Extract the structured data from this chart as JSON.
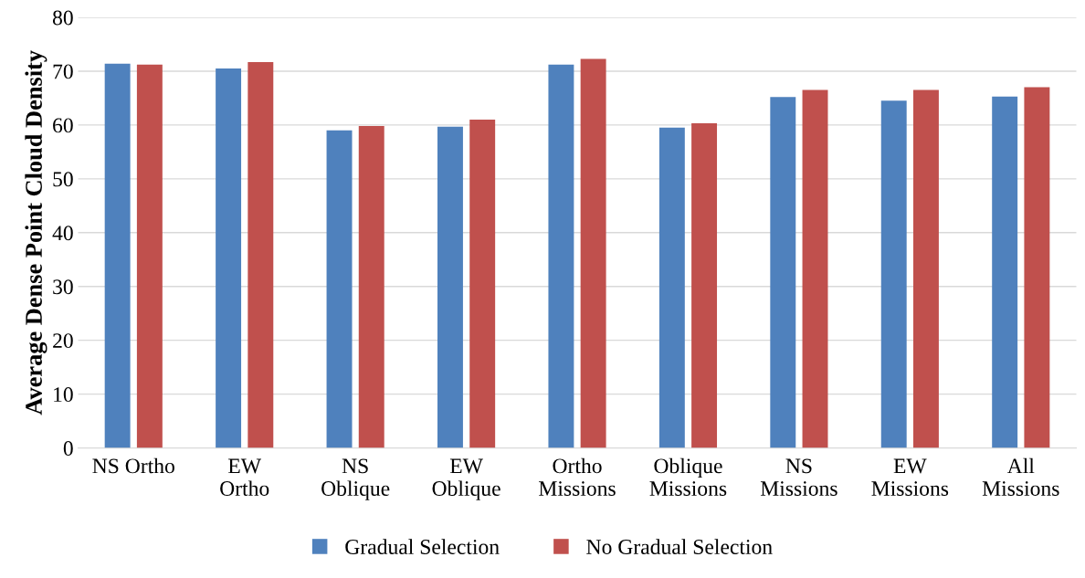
{
  "chart_data": {
    "type": "bar",
    "ylabel": "Average Dense Point Cloud Density",
    "categories": [
      "NS Ortho",
      "EW\nOrtho",
      "NS\nOblique",
      "EW\nOblique",
      "Ortho\nMissions",
      "Oblique\nMissions",
      "NS\nMissions",
      "EW\nMissions",
      "All\nMissions"
    ],
    "series": [
      {
        "name": "Gradual Selection",
        "color": "#4f81bd",
        "values": [
          71.4,
          70.5,
          59.0,
          59.7,
          71.2,
          59.5,
          65.2,
          64.5,
          65.3
        ]
      },
      {
        "name": "No Gradual Selection",
        "color": "#c0504d",
        "values": [
          71.2,
          71.7,
          59.8,
          61.0,
          72.3,
          60.3,
          66.5,
          66.5,
          67.0
        ]
      }
    ],
    "ylim": [
      0,
      80
    ],
    "yticks": [
      0,
      10,
      20,
      30,
      40,
      50,
      60,
      70,
      80
    ],
    "grid": "y",
    "legend": "bottom"
  }
}
